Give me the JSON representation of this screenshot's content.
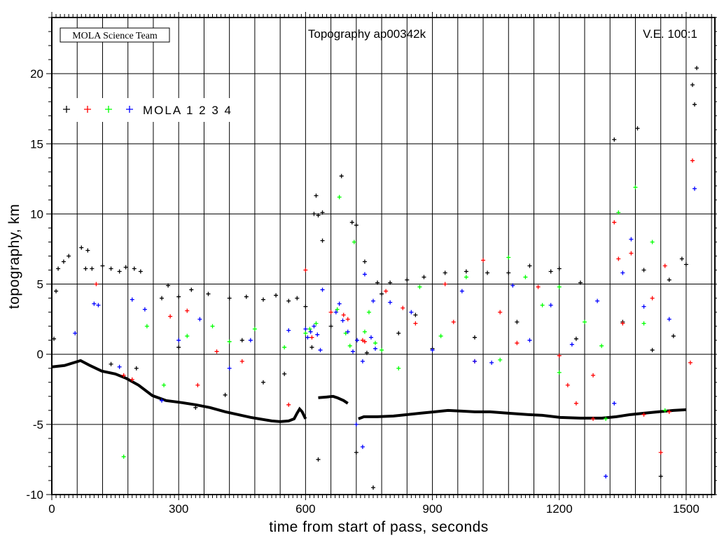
{
  "chart_data": {
    "type": "scatter",
    "title": "Topography ap00342k",
    "credit": "MOLA Science Team",
    "annotation": "V.E. 100:1",
    "xlabel": "time from start of pass, seconds",
    "ylabel": "topography, km",
    "xlim": [
      0,
      1568
    ],
    "ylim": [
      -10,
      24
    ],
    "xticks": [
      0,
      300,
      600,
      900,
      1200,
      1500
    ],
    "yticks": [
      -10,
      -5,
      0,
      5,
      10,
      15,
      20
    ],
    "grid": true,
    "legend": {
      "position": "top-left",
      "label": "MOLA 1 2 3 4"
    },
    "marker": "+",
    "ground_track": {
      "color": "#000000",
      "segments": [
        [
          [
            0,
            -0.9
          ],
          [
            30,
            -0.8
          ],
          [
            68,
            -0.45
          ],
          [
            90,
            -0.8
          ],
          [
            118,
            -1.2
          ],
          [
            150,
            -1.4
          ],
          [
            175,
            -1.7
          ],
          [
            205,
            -2.2
          ],
          [
            238,
            -2.95
          ],
          [
            270,
            -3.3
          ],
          [
            308,
            -3.45
          ],
          [
            340,
            -3.6
          ],
          [
            374,
            -3.8
          ],
          [
            410,
            -4.1
          ],
          [
            440,
            -4.3
          ],
          [
            470,
            -4.5
          ],
          [
            490,
            -4.6
          ],
          [
            520,
            -4.75
          ],
          [
            540,
            -4.8
          ],
          [
            560,
            -4.75
          ],
          [
            573,
            -4.6
          ],
          [
            580,
            -4.2
          ],
          [
            586,
            -3.9
          ],
          [
            592,
            -4.1
          ],
          [
            600,
            -4.6
          ]
        ],
        [
          [
            630,
            -3.1
          ],
          [
            650,
            -3.05
          ],
          [
            665,
            -3.0
          ],
          [
            675,
            -3.1
          ],
          [
            690,
            -3.3
          ],
          [
            700,
            -3.5
          ]
        ],
        [
          [
            725,
            -4.6
          ],
          [
            738,
            -4.45
          ],
          [
            770,
            -4.45
          ],
          [
            808,
            -4.4
          ],
          [
            840,
            -4.3
          ],
          [
            871,
            -4.2
          ],
          [
            905,
            -4.1
          ],
          [
            937,
            -4.0
          ],
          [
            970,
            -4.05
          ],
          [
            1000,
            -4.1
          ],
          [
            1036,
            -4.1
          ],
          [
            1080,
            -4.2
          ],
          [
            1127,
            -4.3
          ],
          [
            1160,
            -4.35
          ],
          [
            1202,
            -4.5
          ],
          [
            1250,
            -4.55
          ],
          [
            1301,
            -4.55
          ],
          [
            1335,
            -4.45
          ],
          [
            1368,
            -4.3
          ],
          [
            1400,
            -4.2
          ],
          [
            1434,
            -4.1
          ],
          [
            1470,
            -4.0
          ],
          [
            1500,
            -3.95
          ]
        ]
      ]
    },
    "series": [
      {
        "name": "MOLA 1",
        "color": "#000000",
        "points": [
          [
            5,
            1.1
          ],
          [
            10,
            4.5
          ],
          [
            15,
            6.1
          ],
          [
            28,
            6.6
          ],
          [
            40,
            7.0
          ],
          [
            70,
            7.6
          ],
          [
            85,
            7.4
          ],
          [
            80,
            6.1
          ],
          [
            95,
            6.1
          ],
          [
            120,
            6.3
          ],
          [
            140,
            6.1
          ],
          [
            160,
            5.9
          ],
          [
            175,
            6.2
          ],
          [
            195,
            6.1
          ],
          [
            210,
            5.9
          ],
          [
            275,
            4.9
          ],
          [
            300,
            4.1
          ],
          [
            330,
            4.6
          ],
          [
            370,
            4.3
          ],
          [
            420,
            4.0
          ],
          [
            460,
            4.1
          ],
          [
            500,
            3.9
          ],
          [
            530,
            4.2
          ],
          [
            560,
            3.8
          ],
          [
            580,
            4.0
          ],
          [
            600,
            3.4
          ],
          [
            620,
            10.0
          ],
          [
            630,
            9.9
          ],
          [
            640,
            10.1
          ],
          [
            625,
            11.3
          ],
          [
            640,
            8.1
          ],
          [
            685,
            12.7
          ],
          [
            710,
            9.4
          ],
          [
            720,
            9.2
          ],
          [
            740,
            6.6
          ],
          [
            770,
            5.1
          ],
          [
            800,
            5.1
          ],
          [
            840,
            5.3
          ],
          [
            880,
            5.5
          ],
          [
            930,
            5.8
          ],
          [
            980,
            5.9
          ],
          [
            1030,
            5.8
          ],
          [
            1080,
            5.8
          ],
          [
            1130,
            6.3
          ],
          [
            1180,
            5.9
          ],
          [
            1200,
            6.1
          ],
          [
            1250,
            5.1
          ],
          [
            1330,
            15.3
          ],
          [
            1385,
            16.1
          ],
          [
            1400,
            6.0
          ],
          [
            1460,
            5.3
          ],
          [
            1490,
            6.8
          ],
          [
            1500,
            6.4
          ],
          [
            1515,
            19.2
          ],
          [
            1520,
            17.8
          ],
          [
            1525,
            20.4
          ],
          [
            1350,
            2.3
          ],
          [
            1440,
            -8.7
          ],
          [
            760,
            -9.5
          ],
          [
            630,
            -7.5
          ],
          [
            720,
            -7.0
          ],
          [
            340,
            -3.8
          ],
          [
            410,
            -2.9
          ],
          [
            500,
            -2.0
          ],
          [
            300,
            0.5
          ],
          [
            260,
            4.0
          ],
          [
            200,
            -1.0
          ],
          [
            140,
            -0.7
          ],
          [
            450,
            1.0
          ],
          [
            550,
            -1.4
          ],
          [
            900,
            0.4
          ],
          [
            1000,
            1.2
          ],
          [
            1100,
            2.3
          ],
          [
            1240,
            1.1
          ],
          [
            1420,
            0.3
          ],
          [
            1470,
            1.3
          ],
          [
            615,
            0.5
          ],
          [
            660,
            2.0
          ],
          [
            745,
            0.1
          ],
          [
            780,
            4.3
          ],
          [
            820,
            1.5
          ],
          [
            860,
            2.8
          ]
        ]
      },
      {
        "name": "MOLA 2",
        "color": "#ff0000",
        "points": [
          [
            105,
            5.0
          ],
          [
            170,
            -1.5
          ],
          [
            190,
            -1.8
          ],
          [
            280,
            2.7
          ],
          [
            320,
            3.1
          ],
          [
            345,
            -2.2
          ],
          [
            390,
            0.2
          ],
          [
            450,
            -0.5
          ],
          [
            560,
            -3.6
          ],
          [
            600,
            6.0
          ],
          [
            660,
            3.0
          ],
          [
            700,
            2.5
          ],
          [
            740,
            0.9
          ],
          [
            790,
            4.5
          ],
          [
            830,
            3.3
          ],
          [
            860,
            2.2
          ],
          [
            930,
            5.0
          ],
          [
            950,
            2.3
          ],
          [
            1000,
            -0.5
          ],
          [
            1020,
            6.7
          ],
          [
            1060,
            3.0
          ],
          [
            1100,
            0.8
          ],
          [
            1150,
            4.8
          ],
          [
            1200,
            -0.1
          ],
          [
            1220,
            -2.2
          ],
          [
            1240,
            -3.5
          ],
          [
            1280,
            -1.5
          ],
          [
            1330,
            9.4
          ],
          [
            1340,
            6.8
          ],
          [
            1350,
            2.2
          ],
          [
            1370,
            7.2
          ],
          [
            1420,
            4.0
          ],
          [
            1450,
            6.3
          ],
          [
            1440,
            -7.0
          ],
          [
            1510,
            -0.6
          ],
          [
            1515,
            13.8
          ],
          [
            1280,
            -4.6
          ],
          [
            1400,
            -4.3
          ],
          [
            1460,
            -4.1
          ],
          [
            615,
            1.2
          ],
          [
            690,
            2.8
          ],
          [
            735,
            1.0
          ]
        ]
      },
      {
        "name": "MOLA 3",
        "color": "#00ff00",
        "points": [
          [
            170,
            -7.3
          ],
          [
            225,
            2.0
          ],
          [
            265,
            -2.2
          ],
          [
            320,
            1.3
          ],
          [
            380,
            2.0
          ],
          [
            420,
            0.9
          ],
          [
            480,
            1.8
          ],
          [
            550,
            0.5
          ],
          [
            600,
            1.5
          ],
          [
            680,
            11.2
          ],
          [
            715,
            8.0
          ],
          [
            750,
            3.0
          ],
          [
            780,
            0.3
          ],
          [
            820,
            -1.0
          ],
          [
            870,
            4.8
          ],
          [
            920,
            1.3
          ],
          [
            980,
            5.5
          ],
          [
            1060,
            -0.4
          ],
          [
            1080,
            6.9
          ],
          [
            1120,
            5.5
          ],
          [
            1160,
            3.5
          ],
          [
            1200,
            -1.3
          ],
          [
            1260,
            2.3
          ],
          [
            1300,
            0.6
          ],
          [
            1340,
            10.1
          ],
          [
            1380,
            11.9
          ],
          [
            1400,
            2.2
          ],
          [
            1420,
            8.0
          ],
          [
            1450,
            -4.0
          ],
          [
            1310,
            -4.6
          ],
          [
            1200,
            4.8
          ],
          [
            610,
            1.8
          ],
          [
            625,
            2.2
          ],
          [
            675,
            3.2
          ],
          [
            695,
            1.5
          ],
          [
            705,
            0.6
          ],
          [
            740,
            1.6
          ],
          [
            765,
            0.8
          ]
        ]
      },
      {
        "name": "MOLA 4",
        "color": "#0000ff",
        "points": [
          [
            55,
            1.5
          ],
          [
            100,
            3.6
          ],
          [
            110,
            3.5
          ],
          [
            160,
            -0.9
          ],
          [
            190,
            3.9
          ],
          [
            220,
            3.2
          ],
          [
            260,
            -3.3
          ],
          [
            300,
            1.0
          ],
          [
            350,
            2.5
          ],
          [
            420,
            -1.0
          ],
          [
            470,
            1.0
          ],
          [
            560,
            1.7
          ],
          [
            600,
            1.8
          ],
          [
            640,
            4.6
          ],
          [
            720,
            -5.0
          ],
          [
            735,
            -6.6
          ],
          [
            740,
            5.7
          ],
          [
            760,
            3.8
          ],
          [
            800,
            3.7
          ],
          [
            850,
            3.0
          ],
          [
            900,
            0.3
          ],
          [
            970,
            4.5
          ],
          [
            1000,
            -0.5
          ],
          [
            1040,
            -0.6
          ],
          [
            1090,
            4.9
          ],
          [
            1130,
            1.0
          ],
          [
            1180,
            3.5
          ],
          [
            1230,
            0.7
          ],
          [
            1290,
            3.8
          ],
          [
            1310,
            -8.7
          ],
          [
            1350,
            5.8
          ],
          [
            1370,
            8.2
          ],
          [
            1400,
            3.4
          ],
          [
            1460,
            2.5
          ],
          [
            1520,
            11.8
          ],
          [
            1330,
            -3.5
          ],
          [
            605,
            1.2
          ],
          [
            612,
            1.6
          ],
          [
            620,
            2.0
          ],
          [
            628,
            1.4
          ],
          [
            635,
            0.3
          ],
          [
            672,
            3.0
          ],
          [
            680,
            3.6
          ],
          [
            688,
            2.4
          ],
          [
            700,
            1.6
          ],
          [
            712,
            0.2
          ],
          [
            722,
            1.0
          ],
          [
            735,
            -0.5
          ],
          [
            755,
            1.2
          ],
          [
            765,
            0.4
          ]
        ]
      }
    ]
  }
}
